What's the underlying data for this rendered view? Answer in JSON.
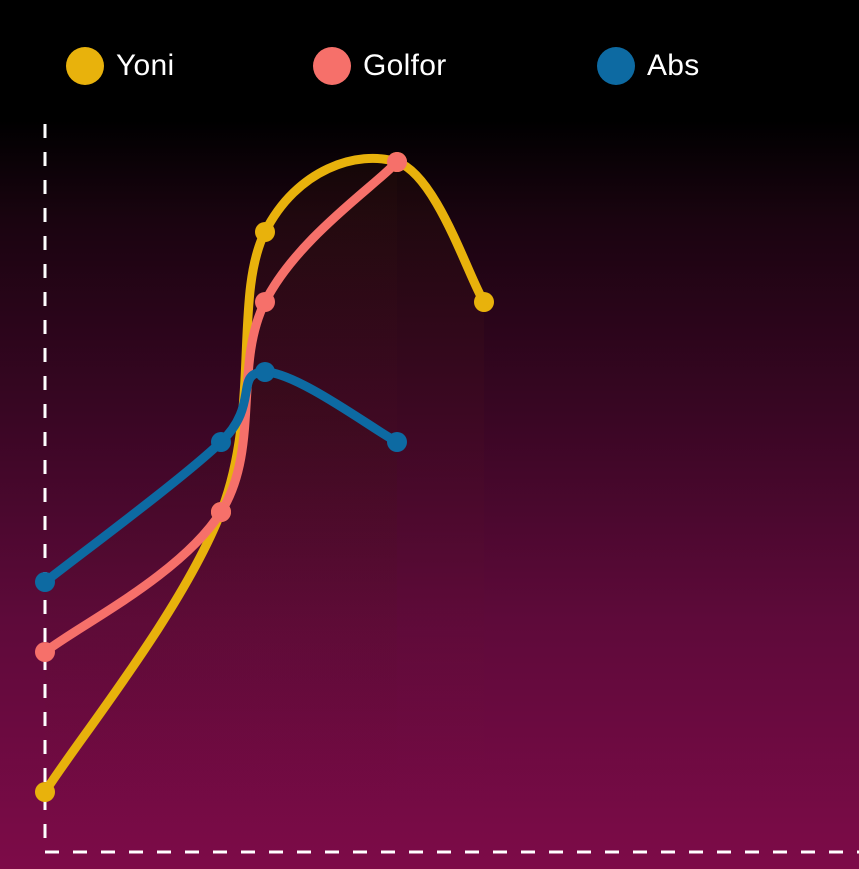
{
  "chart_data": {
    "type": "line",
    "x": [
      0,
      1,
      2,
      3,
      4,
      5,
      6,
      7
    ],
    "series": [
      {
        "name": "Yoni",
        "color": "#e8b20c",
        "points": [
          [
            0,
            1
          ],
          [
            1,
            5
          ],
          [
            2,
            9
          ],
          [
            3,
            10
          ],
          [
            4,
            8
          ]
        ]
      },
      {
        "name": "Golfor",
        "color": "#f6706a",
        "points": [
          [
            0,
            3
          ],
          [
            1,
            5
          ],
          [
            2,
            8
          ],
          [
            3,
            10
          ]
        ]
      },
      {
        "name": "Abs",
        "color": "#0d6aa2",
        "points": [
          [
            0,
            4
          ],
          [
            1,
            6
          ],
          [
            2,
            7
          ],
          [
            3,
            6
          ]
        ]
      }
    ],
    "grid": false,
    "legend_position": "top"
  }
}
